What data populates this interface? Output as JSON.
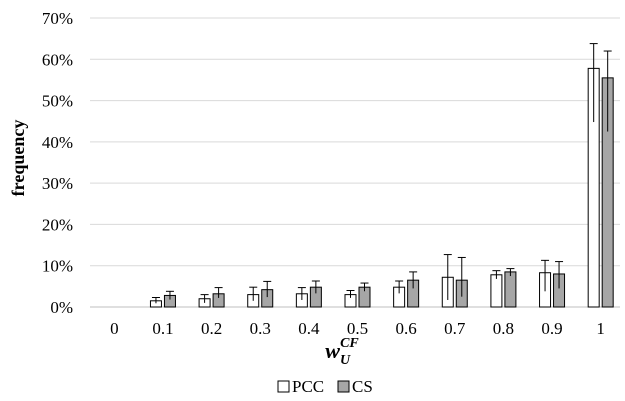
{
  "chart_data": {
    "type": "bar",
    "xlabel_main": "w",
    "xlabel_sub": "U",
    "xlabel_sup": "CF",
    "ylabel": "frequency",
    "ylim": [
      0,
      70
    ],
    "yticks": [
      "0%",
      "10%",
      "20%",
      "30%",
      "40%",
      "50%",
      "60%",
      "70%"
    ],
    "categories": [
      "0",
      "0.1",
      "0.2",
      "0.3",
      "0.4",
      "0.5",
      "0.6",
      "0.7",
      "0.8",
      "0.9",
      "1"
    ],
    "grid": "horizontal",
    "legend_position": "bottom",
    "series": [
      {
        "name": "PCC",
        "color": "#ffffff",
        "values": [
          0,
          1.5,
          2.0,
          3.0,
          3.2,
          3.0,
          4.8,
          7.2,
          7.8,
          8.3,
          57.8
        ],
        "err_low": [
          0,
          0.6,
          1.0,
          1.5,
          1.5,
          0.8,
          1.5,
          5.5,
          1.0,
          4.5,
          13.0
        ],
        "err_high": [
          0,
          0.8,
          1.0,
          1.8,
          1.5,
          1.0,
          1.5,
          5.5,
          1.0,
          3.0,
          6.0
        ]
      },
      {
        "name": "CS",
        "color": "#a6a6a6",
        "values": [
          0,
          2.8,
          3.2,
          4.2,
          4.8,
          4.8,
          6.5,
          6.5,
          8.5,
          8.0,
          55.5
        ],
        "err_low": [
          0,
          1.0,
          1.0,
          1.8,
          1.5,
          1.0,
          2.0,
          4.0,
          1.0,
          3.5,
          13.0
        ],
        "err_high": [
          0,
          1.0,
          1.5,
          2.0,
          1.5,
          1.0,
          2.0,
          5.5,
          0.8,
          3.0,
          6.5
        ]
      }
    ]
  }
}
